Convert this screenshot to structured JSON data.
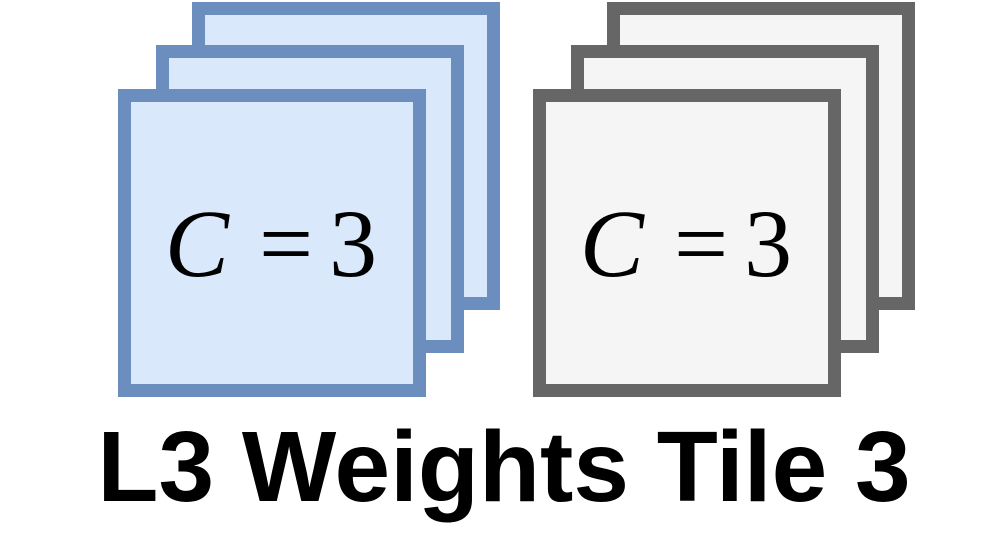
{
  "diagram": {
    "caption": "L3 Weights Tile 3",
    "colors": {
      "blue_fill": "#dae8fc",
      "blue_stroke": "#6c8ebf",
      "gray_fill": "#f5f5f5",
      "gray_stroke": "#666666",
      "text": "#000000"
    },
    "stacks": [
      {
        "name": "blue-stack",
        "label": {
          "variable": "C",
          "operator": "=",
          "value": "3"
        }
      },
      {
        "name": "gray-stack",
        "label": {
          "variable": "C",
          "operator": "=",
          "value": "3"
        }
      }
    ]
  }
}
